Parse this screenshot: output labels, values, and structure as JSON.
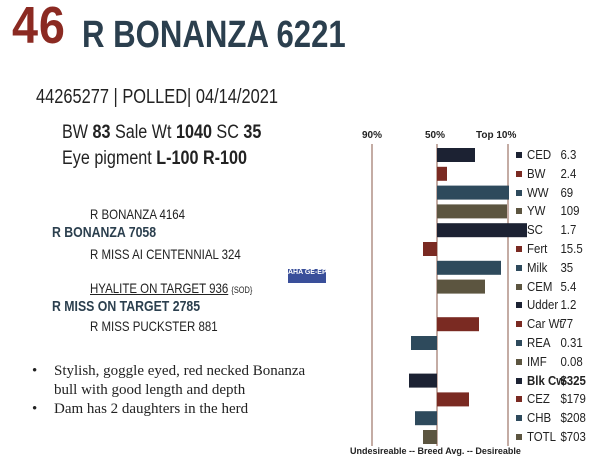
{
  "header": {
    "lot": "46",
    "name": "R BONANZA 6221"
  },
  "id_line": "44265277 | POLLED| 04/14/2021",
  "stats": {
    "bw_label": "BW",
    "bw_value": "83",
    "sale_label": "Sale Wt",
    "sale_value": "1040",
    "sc_label": "SC",
    "sc_value": "35",
    "eye_label": "Eye pigment",
    "eye_value": "L-100  R-100"
  },
  "pedigree": {
    "sire_sire": "R BONANZA 4164",
    "sire": "R BONANZA 7058",
    "sire_dam": "R MISS AI CENTENNIAL 324",
    "dam_sire": "HYALITE ON TARGET 936",
    "dam_sire_note": "{SOD}",
    "dam": "R MISS ON TARGET 2785",
    "dam_dam": "R MISS PUCKSTER 881",
    "certification_logo": "AHA GE-EPD"
  },
  "bullets": [
    "Stylish, goggle eyed, red necked Bonanza bull with good length and depth",
    "Dam has 2 daughters in the herd"
  ],
  "chart_headers": {
    "p90": "90%",
    "p50": "50%",
    "top10": "Top 10%"
  },
  "chart_footer": "Undesireable -- Breed Avg. -- Desireable",
  "colors": {
    "navy": "#1c2233",
    "red": "#7a2a22",
    "teal": "#2e4a5c",
    "olive": "#5c5540",
    "lot": "#8b2a22",
    "title": "#2b3f4e"
  },
  "chart_data": {
    "type": "bar",
    "categories": [
      "CED",
      "BW",
      "WW",
      "YW",
      "SC",
      "Fert",
      "Milk",
      "CEM",
      "Udder",
      "Car Wt",
      "REA",
      "IMF",
      "Blk Cw",
      "CEZ",
      "CHB",
      "TOTL"
    ],
    "values_text": [
      "6.3",
      "2.4",
      "69",
      "109",
      "1.7",
      "15.5",
      "35",
      "5.4",
      "1.2",
      "77",
      "0.31",
      "0.08",
      "$325",
      "$179",
      "$208",
      "$703"
    ],
    "percentile_offsets": [
      38,
      10,
      72,
      70,
      90,
      -14,
      64,
      48,
      0,
      42,
      -26,
      0,
      -28,
      32,
      -22,
      -14
    ],
    "bar_colors": [
      "#1c2233",
      "#7a2a22",
      "#2e4a5c",
      "#5c5540",
      "#1c2233",
      "#7a2a22",
      "#2e4a5c",
      "#5c5540",
      "#1c2233",
      "#7a2a22",
      "#2e4a5c",
      "#5c5540",
      "#1c2233",
      "#7a2a22",
      "#2e4a5c",
      "#5c5540"
    ],
    "bold_rows": [
      "Blk Cw"
    ],
    "axis_labels": [
      "90%",
      "50%",
      "Top 10%"
    ]
  }
}
